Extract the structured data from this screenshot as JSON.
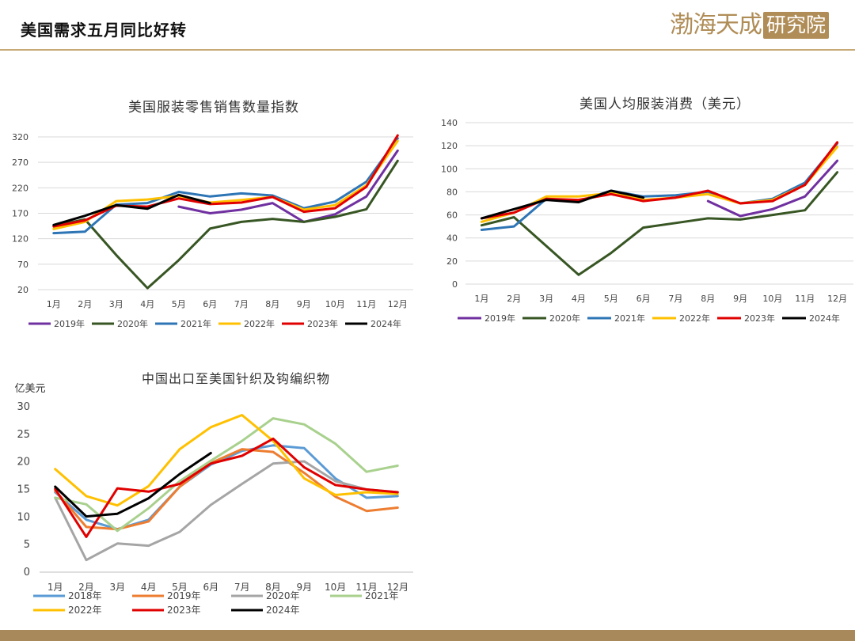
{
  "header": {
    "title": "美国需求五月同比好转"
  },
  "logo": {
    "main_text": "渤海天成",
    "box_text": "研究院",
    "color": "#b08d57"
  },
  "chart_data": [
    {
      "type": "line",
      "title": "美国服装零售销售数量指数",
      "ylabel": "",
      "ylim": [
        20,
        320
      ],
      "yticks": [
        20,
        70,
        120,
        170,
        220,
        270,
        320
      ],
      "categories": [
        "1月",
        "2月",
        "3月",
        "4月",
        "5月",
        "6月",
        "7月",
        "8月",
        "9月",
        "10月",
        "11月",
        "12月"
      ],
      "legend_position": "bottom",
      "grid": true,
      "series": [
        {
          "name": "2019年",
          "color": "#7030a0",
          "values": [
            null,
            null,
            null,
            null,
            183,
            170,
            177,
            190,
            153,
            168,
            203,
            293
          ]
        },
        {
          "name": "2020年",
          "color": "#375623",
          "values": [
            145,
            158,
            88,
            23,
            78,
            140,
            153,
            159,
            153,
            163,
            178,
            273
          ]
        },
        {
          "name": "2021年",
          "color": "#2e75b6",
          "values": [
            131,
            134,
            187,
            190,
            212,
            203,
            209,
            205,
            180,
            193,
            232,
            317
          ]
        },
        {
          "name": "2022年",
          "color": "#ffc000",
          "values": [
            139,
            153,
            194,
            197,
            204,
            191,
            196,
            202,
            177,
            186,
            225,
            312
          ]
        },
        {
          "name": "2023年",
          "color": "#e00000",
          "values": [
            144,
            156,
            185,
            183,
            199,
            188,
            191,
            202,
            173,
            180,
            222,
            323
          ]
        },
        {
          "name": "2024年",
          "color": "#000000",
          "values": [
            147,
            165,
            186,
            179,
            206,
            190,
            null,
            null,
            null,
            null,
            null,
            null
          ]
        }
      ]
    },
    {
      "type": "line",
      "title": "美国人均服装消费（美元）",
      "ylabel": "",
      "ylim": [
        0,
        140
      ],
      "yticks": [
        0,
        20,
        40,
        60,
        80,
        100,
        120,
        140
      ],
      "categories": [
        "1月",
        "2月",
        "3月",
        "4月",
        "5月",
        "6月",
        "7月",
        "8月",
        "9月",
        "10月",
        "11月",
        "12月"
      ],
      "legend_position": "bottom",
      "grid": true,
      "series": [
        {
          "name": "2019年",
          "color": "#7030a0",
          "values": [
            null,
            null,
            null,
            null,
            null,
            null,
            null,
            72,
            59,
            65,
            76,
            107
          ]
        },
        {
          "name": "2020年",
          "color": "#375623",
          "values": [
            51,
            58,
            33,
            8,
            27,
            49,
            53,
            57,
            56,
            60,
            64,
            97
          ]
        },
        {
          "name": "2021年",
          "color": "#2e75b6",
          "values": [
            47,
            50,
            74,
            72,
            81,
            76,
            77,
            80,
            70,
            74,
            88,
            122
          ]
        },
        {
          "name": "2022年",
          "color": "#ffc000",
          "values": [
            54,
            62,
            76,
            76,
            79,
            73,
            75,
            78,
            70,
            73,
            86,
            119
          ]
        },
        {
          "name": "2023年",
          "color": "#e00000",
          "values": [
            57,
            62,
            74,
            73,
            78,
            72,
            75,
            81,
            70,
            72,
            86,
            123
          ]
        },
        {
          "name": "2024年",
          "color": "#000000",
          "values": [
            57,
            65,
            73,
            71,
            81,
            75,
            null,
            null,
            null,
            null,
            null,
            null
          ]
        }
      ]
    },
    {
      "type": "line",
      "title": "中国出口至美国针织及钩编织物",
      "ylabel": "亿美元",
      "ylim": [
        0,
        30
      ],
      "yticks": [
        0,
        5,
        10,
        15,
        20,
        25,
        30
      ],
      "categories": [
        "1月",
        "2月",
        "3月",
        "4月",
        "5月",
        "6月",
        "7月",
        "8月",
        "9月",
        "10月",
        "11月",
        "12月"
      ],
      "legend_position": "bottom",
      "grid": false,
      "series": [
        {
          "name": "2018年",
          "color": "#5b9bd5",
          "values": [
            14.5,
            9.5,
            7.8,
            9.5,
            15.5,
            19.5,
            22.0,
            23.0,
            22.5,
            17.0,
            13.5,
            13.8
          ]
        },
        {
          "name": "2019年",
          "color": "#ed7d31",
          "values": [
            14.8,
            8.2,
            7.8,
            9.2,
            15.5,
            19.8,
            22.3,
            21.8,
            18.0,
            13.7,
            11.1,
            11.7
          ]
        },
        {
          "name": "2020年",
          "color": "#a5a5a5",
          "values": [
            13.5,
            2.2,
            5.2,
            4.8,
            7.3,
            12.2,
            16.0,
            19.7,
            20.1,
            16.5,
            15.0,
            14.5
          ]
        },
        {
          "name": "2021年",
          "color": "#a9d18e",
          "values": [
            13.5,
            12.3,
            7.5,
            11.6,
            16.5,
            20.2,
            23.8,
            27.9,
            26.8,
            23.3,
            18.2,
            19.3
          ]
        },
        {
          "name": "2022年",
          "color": "#ffc000",
          "values": [
            18.7,
            13.8,
            12.1,
            15.6,
            22.3,
            26.3,
            28.5,
            23.8,
            17.0,
            14.0,
            14.5,
            14.2
          ]
        },
        {
          "name": "2023年",
          "color": "#e00000",
          "values": [
            15.1,
            6.4,
            15.2,
            14.6,
            16.0,
            19.7,
            21.1,
            24.2,
            19.0,
            15.8,
            15.0,
            14.5
          ]
        },
        {
          "name": "2024年",
          "color": "#000000",
          "values": [
            15.5,
            10.1,
            10.6,
            13.4,
            17.8,
            21.6,
            null,
            null,
            null,
            null,
            null,
            null
          ]
        }
      ]
    }
  ]
}
